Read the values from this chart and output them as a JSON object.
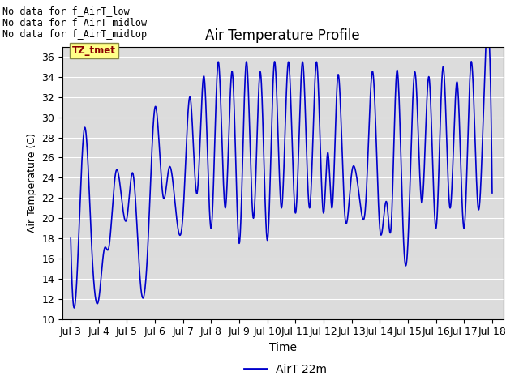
{
  "title": "Air Temperature Profile",
  "ylabel": "Air Temperature (C)",
  "xlabel": "Time",
  "ylim": [
    10,
    37
  ],
  "yticks": [
    10,
    12,
    14,
    16,
    18,
    20,
    22,
    24,
    26,
    28,
    30,
    32,
    34,
    36
  ],
  "legend_label": "AirT 22m",
  "line_color": "#0000cc",
  "bg_color": "#dcdcdc",
  "no_data_texts": [
    "No data for f_AirT_low",
    "No data for f_AirT_midlow",
    "No data for f_AirT_midtop"
  ],
  "tz_label": "TZ_tmet",
  "x_tick_labels": [
    "Jul 3",
    "Jul 4",
    "Jul 5",
    "Jul 6",
    "Jul 7",
    "Jul 8",
    "Jul 9",
    "Jul 10",
    "Jul 11",
    "Jul 12",
    "Jul 13",
    "Jul 14",
    "Jul 15",
    "Jul 16",
    "Jul 17",
    "Jul 18"
  ],
  "x_tick_positions": [
    3,
    4,
    5,
    6,
    7,
    8,
    9,
    10,
    11,
    12,
    13,
    14,
    15,
    16,
    17,
    18
  ],
  "xlim": [
    2.7,
    18.4
  ]
}
